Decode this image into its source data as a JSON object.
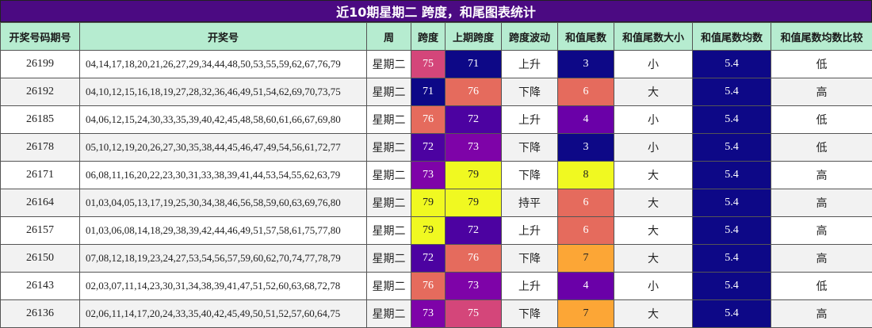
{
  "title": "近10期星期二 跨度，和尾图表统计",
  "columns": [
    "开奖号码期号",
    "开奖号",
    "周",
    "跨度",
    "上期跨度",
    "跨度波动",
    "和值尾数",
    "和值尾数大小",
    "和值尾数均数",
    "和值尾数均数比较"
  ],
  "rows": [
    {
      "issue": "26199",
      "numbers": "04,14,17,18,20,21,26,27,29,34,44,48,50,53,55,59,62,67,76,79",
      "week": "星期二",
      "span": "75",
      "span_color": "#d4467a",
      "span_text_color": "#ffffff",
      "prev_span": "71",
      "prev_span_color": "#0d0887",
      "prev_span_text_color": "#ffffff",
      "trend": "上升",
      "tail": "3",
      "tail_color": "#0d0887",
      "tail_text_color": "#ffffff",
      "size": "小",
      "avg": "5.4",
      "avg_color": "#0d0887",
      "avg_text_color": "#ffffff",
      "compare": "低"
    },
    {
      "issue": "26192",
      "numbers": "04,10,12,15,16,18,19,27,28,32,36,46,49,51,54,62,69,70,73,75",
      "week": "星期二",
      "span": "71",
      "span_color": "#0d0887",
      "span_text_color": "#ffffff",
      "prev_span": "76",
      "prev_span_color": "#e56b5d",
      "prev_span_text_color": "#ffffff",
      "trend": "下降",
      "tail": "6",
      "tail_color": "#e56b5d",
      "tail_text_color": "#ffffff",
      "size": "大",
      "avg": "5.4",
      "avg_color": "#0d0887",
      "avg_text_color": "#ffffff",
      "compare": "高"
    },
    {
      "issue": "26185",
      "numbers": "04,06,12,15,24,30,33,35,39,40,42,45,48,58,60,61,66,67,69,80",
      "week": "星期二",
      "span": "76",
      "span_color": "#e56b5d",
      "span_text_color": "#ffffff",
      "prev_span": "72",
      "prev_span_color": "#4c02a1",
      "prev_span_text_color": "#ffffff",
      "trend": "上升",
      "tail": "4",
      "tail_color": "#6a00a8",
      "tail_text_color": "#ffffff",
      "size": "小",
      "avg": "5.4",
      "avg_color": "#0d0887",
      "avg_text_color": "#ffffff",
      "compare": "低"
    },
    {
      "issue": "26178",
      "numbers": "05,10,12,19,20,26,27,30,35,38,44,45,46,47,49,54,56,61,72,77",
      "week": "星期二",
      "span": "72",
      "span_color": "#4c02a1",
      "span_text_color": "#ffffff",
      "prev_span": "73",
      "prev_span_color": "#7e03a8",
      "prev_span_text_color": "#ffffff",
      "trend": "下降",
      "tail": "3",
      "tail_color": "#0d0887",
      "tail_text_color": "#ffffff",
      "size": "小",
      "avg": "5.4",
      "avg_color": "#0d0887",
      "avg_text_color": "#ffffff",
      "compare": "低"
    },
    {
      "issue": "26171",
      "numbers": "06,08,11,16,20,22,23,30,31,33,38,39,41,44,53,54,55,62,63,79",
      "week": "星期二",
      "span": "73",
      "span_color": "#7e03a8",
      "span_text_color": "#ffffff",
      "prev_span": "79",
      "prev_span_color": "#f0f921",
      "prev_span_text_color": "#222222",
      "trend": "下降",
      "tail": "8",
      "tail_color": "#f0f921",
      "tail_text_color": "#222222",
      "size": "大",
      "avg": "5.4",
      "avg_color": "#0d0887",
      "avg_text_color": "#ffffff",
      "compare": "高"
    },
    {
      "issue": "26164",
      "numbers": "01,03,04,05,13,17,19,25,30,34,38,46,56,58,59,60,63,69,76,80",
      "week": "星期二",
      "span": "79",
      "span_color": "#f0f921",
      "span_text_color": "#222222",
      "prev_span": "79",
      "prev_span_color": "#f0f921",
      "prev_span_text_color": "#222222",
      "trend": "持平",
      "tail": "6",
      "tail_color": "#e56b5d",
      "tail_text_color": "#ffffff",
      "size": "大",
      "avg": "5.4",
      "avg_color": "#0d0887",
      "avg_text_color": "#ffffff",
      "compare": "高"
    },
    {
      "issue": "26157",
      "numbers": "01,03,06,08,14,18,29,38,39,42,44,46,49,51,57,58,61,75,77,80",
      "week": "星期二",
      "span": "79",
      "span_color": "#f0f921",
      "span_text_color": "#222222",
      "prev_span": "72",
      "prev_span_color": "#4c02a1",
      "prev_span_text_color": "#ffffff",
      "trend": "上升",
      "tail": "6",
      "tail_color": "#e56b5d",
      "tail_text_color": "#ffffff",
      "size": "大",
      "avg": "5.4",
      "avg_color": "#0d0887",
      "avg_text_color": "#ffffff",
      "compare": "高"
    },
    {
      "issue": "26150",
      "numbers": "07,08,12,18,19,23,24,27,53,54,56,57,59,60,62,70,74,77,78,79",
      "week": "星期二",
      "span": "72",
      "span_color": "#4c02a1",
      "span_text_color": "#ffffff",
      "prev_span": "76",
      "prev_span_color": "#e56b5d",
      "prev_span_text_color": "#ffffff",
      "trend": "下降",
      "tail": "7",
      "tail_color": "#fca636",
      "tail_text_color": "#222222",
      "size": "大",
      "avg": "5.4",
      "avg_color": "#0d0887",
      "avg_text_color": "#ffffff",
      "compare": "高"
    },
    {
      "issue": "26143",
      "numbers": "02,03,07,11,14,23,30,31,34,38,39,41,47,51,52,60,63,68,72,78",
      "week": "星期二",
      "span": "76",
      "span_color": "#e56b5d",
      "span_text_color": "#ffffff",
      "prev_span": "73",
      "prev_span_color": "#7e03a8",
      "prev_span_text_color": "#ffffff",
      "trend": "上升",
      "tail": "4",
      "tail_color": "#6a00a8",
      "tail_text_color": "#ffffff",
      "size": "小",
      "avg": "5.4",
      "avg_color": "#0d0887",
      "avg_text_color": "#ffffff",
      "compare": "低"
    },
    {
      "issue": "26136",
      "numbers": "02,06,11,14,17,20,24,33,35,40,42,45,49,50,51,52,57,60,64,75",
      "week": "星期二",
      "span": "73",
      "span_color": "#7e03a8",
      "span_text_color": "#ffffff",
      "prev_span": "75",
      "prev_span_color": "#d4467a",
      "prev_span_text_color": "#ffffff",
      "trend": "下降",
      "tail": "7",
      "tail_color": "#fca636",
      "tail_text_color": "#222222",
      "size": "大",
      "avg": "5.4",
      "avg_color": "#0d0887",
      "avg_text_color": "#ffffff",
      "compare": "高"
    }
  ]
}
